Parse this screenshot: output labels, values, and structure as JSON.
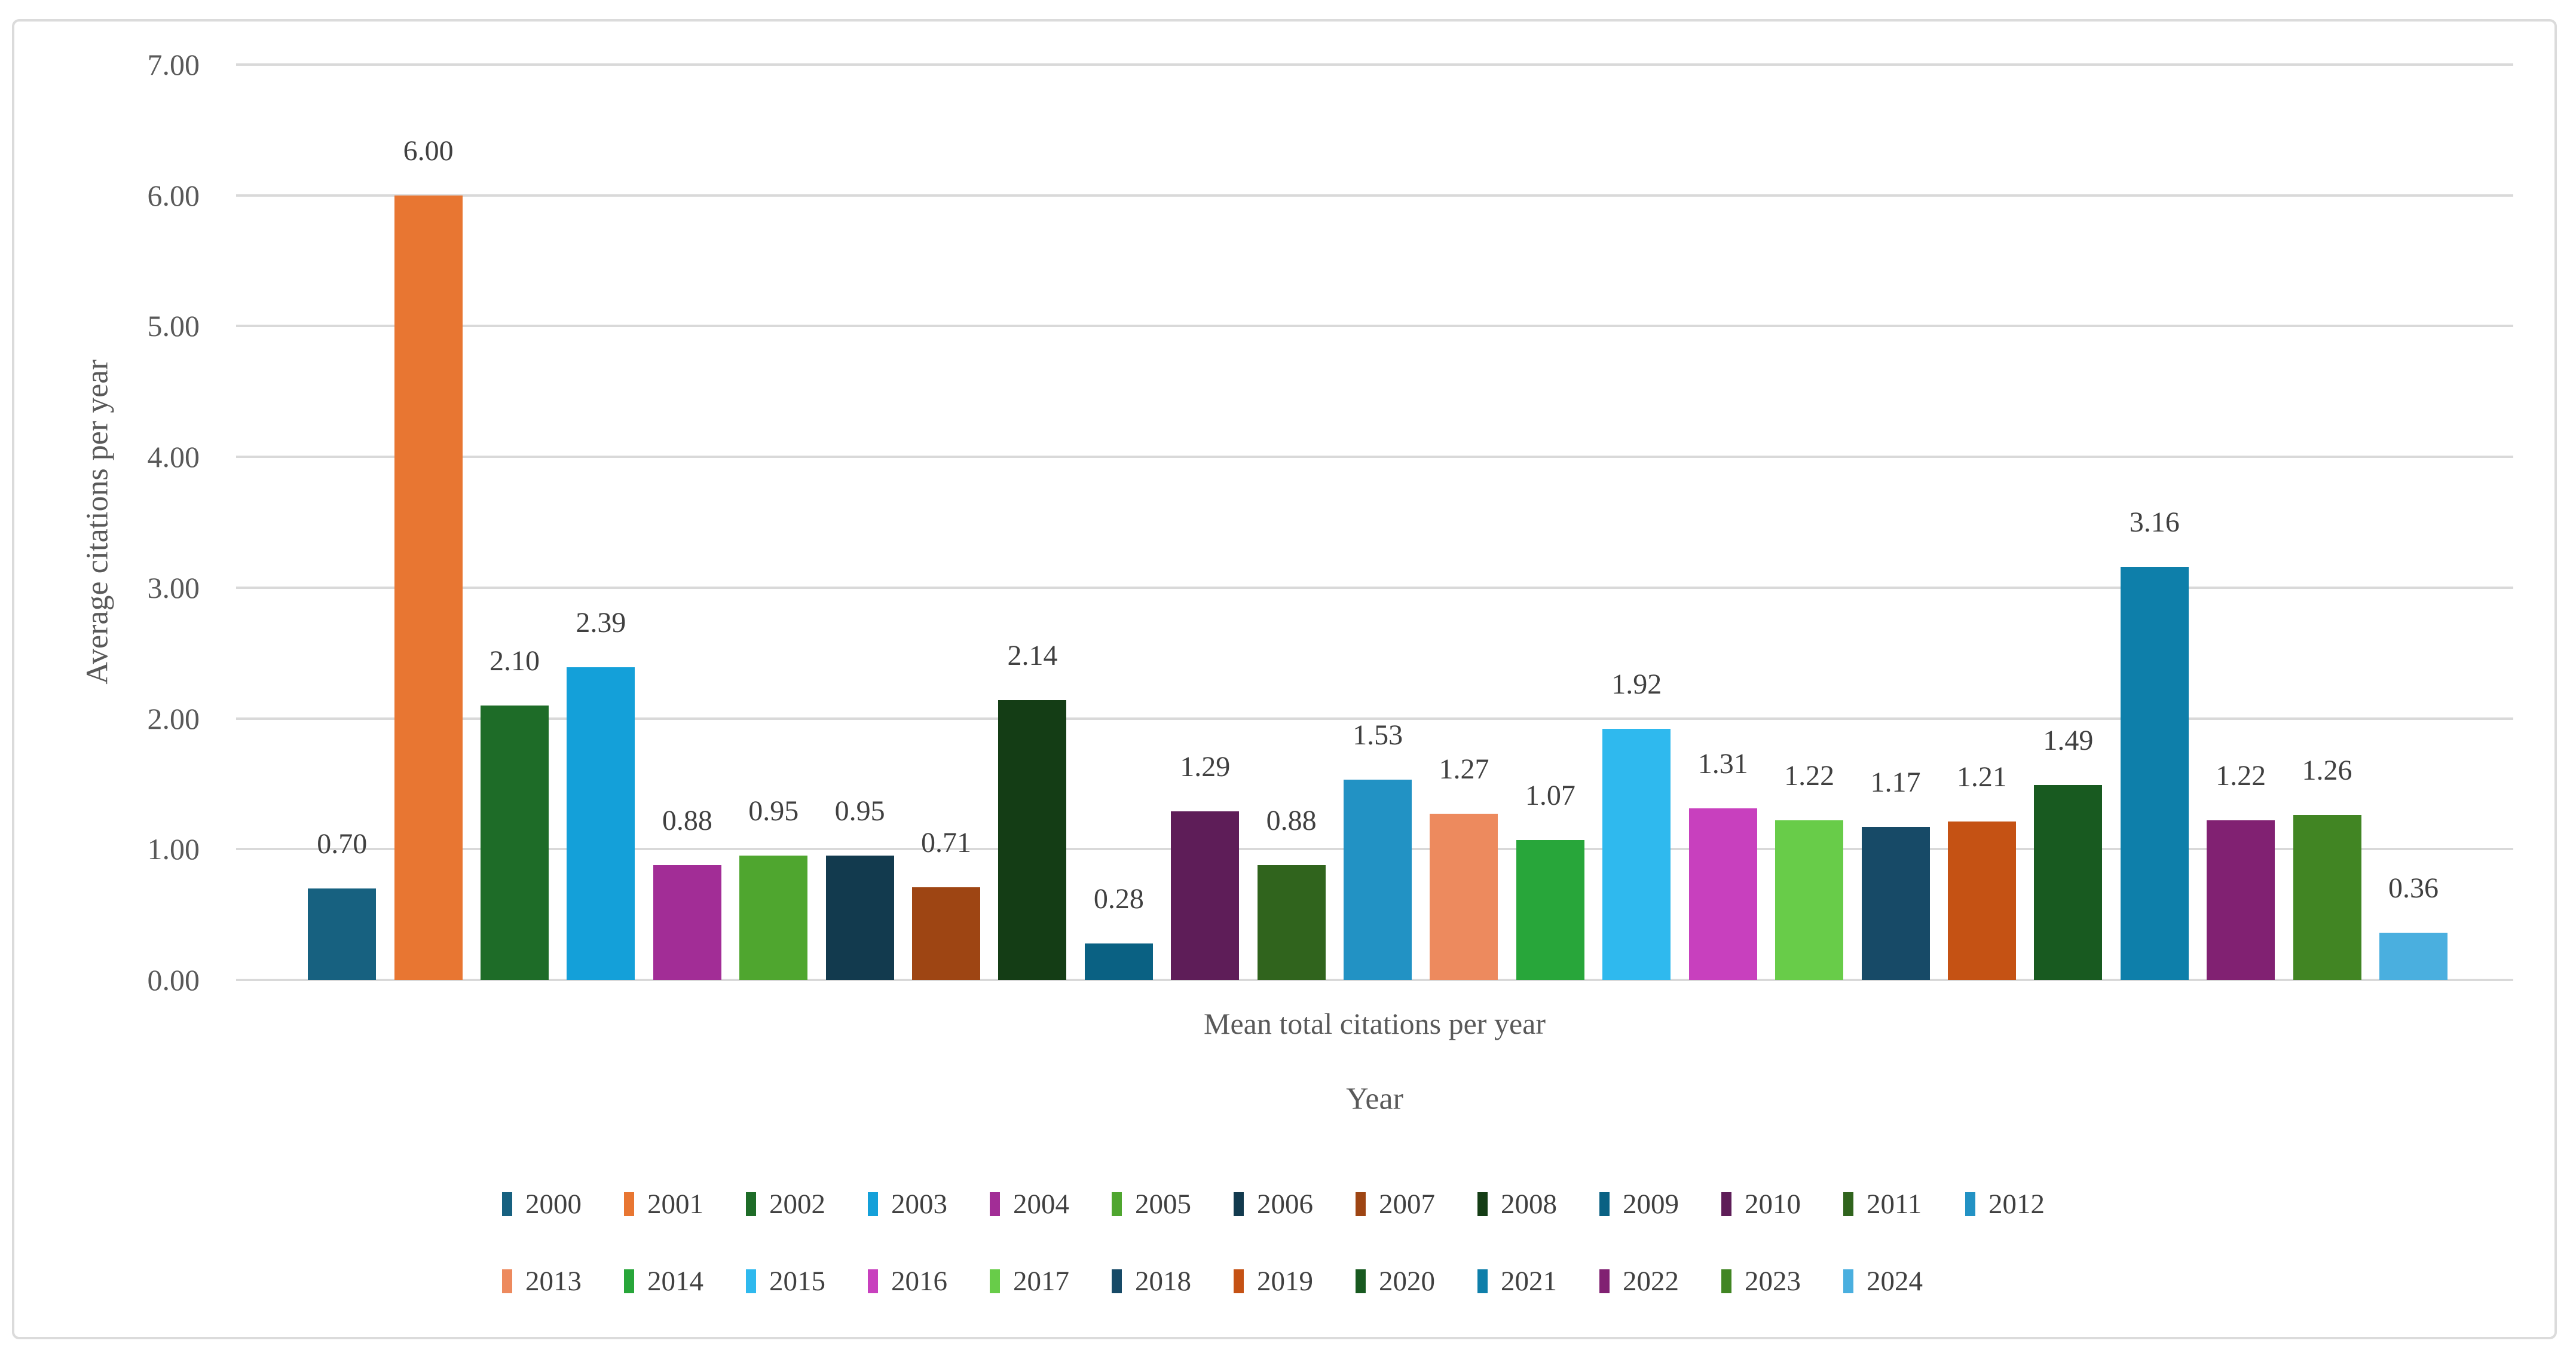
{
  "chart_data": {
    "type": "bar",
    "title": "",
    "ylabel": "Average citations per year",
    "xlabel": "Year",
    "category_axis_label": "Mean total citations per year",
    "ylim": [
      0,
      7
    ],
    "y_ticks": [
      "0.00",
      "1.00",
      "2.00",
      "3.00",
      "4.00",
      "5.00",
      "6.00",
      "7.00"
    ],
    "grid": true,
    "legend_position": "bottom",
    "legend_row_split": 13,
    "series": [
      {
        "year": "2000",
        "value": 0.7,
        "label": "0.70",
        "color": "#176180"
      },
      {
        "year": "2001",
        "value": 6.0,
        "label": "6.00",
        "color": "#E87632"
      },
      {
        "year": "2002",
        "value": 2.1,
        "label": "2.10",
        "color": "#1E6C28"
      },
      {
        "year": "2003",
        "value": 2.39,
        "label": "2.39",
        "color": "#14A0D9"
      },
      {
        "year": "2004",
        "value": 0.88,
        "label": "0.88",
        "color": "#A22D96"
      },
      {
        "year": "2005",
        "value": 0.95,
        "label": "0.95",
        "color": "#4FA62F"
      },
      {
        "year": "2006",
        "value": 0.95,
        "label": "0.95",
        "color": "#123A4E"
      },
      {
        "year": "2007",
        "value": 0.71,
        "label": "0.71",
        "color": "#9E4513"
      },
      {
        "year": "2008",
        "value": 2.14,
        "label": "2.14",
        "color": "#143D15"
      },
      {
        "year": "2009",
        "value": 0.28,
        "label": "0.28",
        "color": "#0A6183"
      },
      {
        "year": "2010",
        "value": 1.29,
        "label": "1.29",
        "color": "#5E1D58"
      },
      {
        "year": "2011",
        "value": 0.88,
        "label": "0.88",
        "color": "#30641D"
      },
      {
        "year": "2012",
        "value": 1.53,
        "label": "1.53",
        "color": "#2292C4"
      },
      {
        "year": "2013",
        "value": 1.27,
        "label": "1.27",
        "color": "#ED8A5E"
      },
      {
        "year": "2014",
        "value": 1.07,
        "label": "1.07",
        "color": "#28A63A"
      },
      {
        "year": "2015",
        "value": 1.92,
        "label": "1.92",
        "color": "#2FB9EE"
      },
      {
        "year": "2016",
        "value": 1.31,
        "label": "1.31",
        "color": "#C840BE"
      },
      {
        "year": "2017",
        "value": 1.22,
        "label": "1.22",
        "color": "#68CC49"
      },
      {
        "year": "2018",
        "value": 1.17,
        "label": "1.17",
        "color": "#174A67"
      },
      {
        "year": "2019",
        "value": 1.21,
        "label": "1.21",
        "color": "#C55214"
      },
      {
        "year": "2020",
        "value": 1.49,
        "label": "1.49",
        "color": "#185A20"
      },
      {
        "year": "2021",
        "value": 3.16,
        "label": "3.16",
        "color": "#0E7FAA"
      },
      {
        "year": "2022",
        "value": 1.22,
        "label": "1.22",
        "color": "#812172"
      },
      {
        "year": "2023",
        "value": 1.26,
        "label": "1.26",
        "color": "#418523"
      },
      {
        "year": "2024",
        "value": 0.36,
        "label": "0.36",
        "color": "#4AAFDF"
      }
    ]
  },
  "styles": {
    "grid_color": "#D9D9D9",
    "frame_border_color": "#DBDBDB",
    "tick_text_color": "#595959",
    "data_label_color": "#404040",
    "legend_text_color": "#404040",
    "background": "#FFFFFF"
  }
}
